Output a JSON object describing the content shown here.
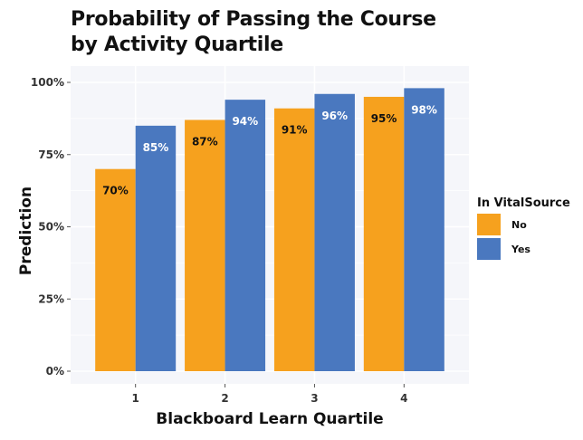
{
  "chart_data": {
    "type": "bar",
    "title": [
      "Probability of Passing the Course",
      "by Activity Quartile"
    ],
    "xlabel": "Blackboard Learn Quartile",
    "ylabel": "Prediction",
    "categories": [
      "1",
      "2",
      "3",
      "4"
    ],
    "ylim": [
      0,
      1
    ],
    "yticks": [
      "0%",
      "25%",
      "50%",
      "75%",
      "100%"
    ],
    "ytick_values": [
      0,
      0.25,
      0.5,
      0.75,
      1.0
    ],
    "legend": {
      "title": "In VitalSource",
      "placement": "right"
    },
    "series": [
      {
        "name": "No",
        "color": "#F6A11E",
        "values": [
          0.7,
          0.87,
          0.91,
          0.95
        ],
        "labels": [
          "70%",
          "87%",
          "91%",
          "95%"
        ],
        "label_color": "#111111"
      },
      {
        "name": "Yes",
        "color": "#4A78BF",
        "values": [
          0.85,
          0.94,
          0.96,
          0.98
        ],
        "labels": [
          "85%",
          "94%",
          "96%",
          "98%"
        ],
        "label_color": "#ffffff"
      }
    ],
    "panel_background": "#F5F6FA",
    "grid": true
  }
}
